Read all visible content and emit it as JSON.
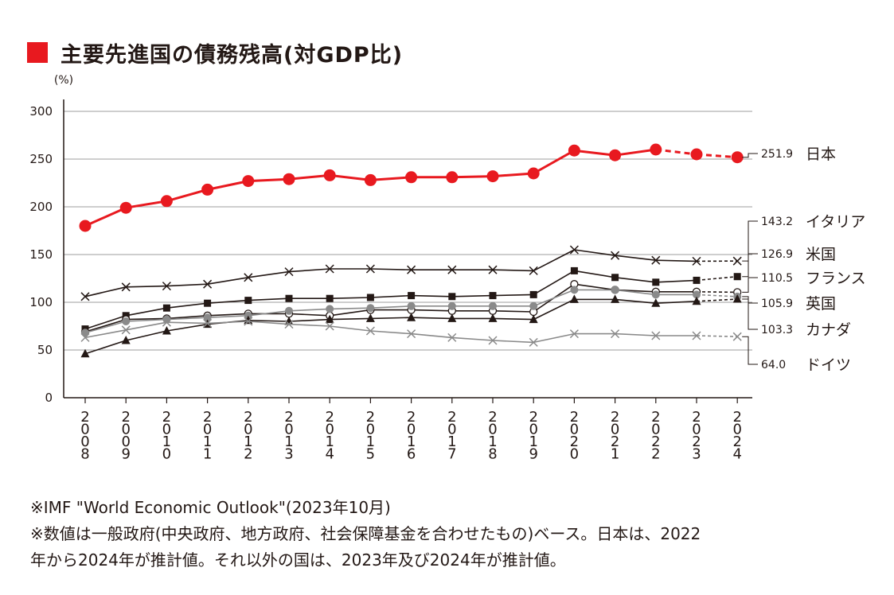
{
  "title": "主要先進国の債務残高(対GDP比)",
  "colors": {
    "accent": "#e8191f",
    "grid": "#9c9c9c",
    "axis": "#231815"
  },
  "chart_data": {
    "type": "line",
    "yunit": "(%)",
    "ylim": [
      0,
      300
    ],
    "yticks": [
      0,
      50,
      100,
      150,
      200,
      250,
      300
    ],
    "grid": true,
    "categories": [
      "2008",
      "2009",
      "2010",
      "2011",
      "2012",
      "2013",
      "2014",
      "2015",
      "2016",
      "2017",
      "2018",
      "2019",
      "2020",
      "2021",
      "2022",
      "2023",
      "2024"
    ],
    "series": [
      {
        "name": "日本",
        "label": "251.9",
        "color": "#e8191f",
        "marker": "circle-filled",
        "estimate_from": "2022",
        "values": [
          180,
          199,
          206,
          218,
          227,
          229,
          233,
          228,
          231,
          231,
          232,
          235,
          259,
          254,
          260,
          255,
          251.9
        ]
      },
      {
        "name": "イタリア",
        "label": "143.2",
        "color": "#231815",
        "marker": "x",
        "estimate_from": "2023",
        "values": [
          106,
          116,
          117,
          119,
          126,
          132,
          135,
          135,
          134,
          134,
          134,
          133,
          155,
          149,
          144,
          143,
          143.2
        ]
      },
      {
        "name": "米国",
        "label": "126.9",
        "color": "#231815",
        "marker": "square",
        "estimate_from": "2023",
        "values": [
          72,
          86,
          94,
          99,
          102,
          104,
          104,
          105,
          107,
          106,
          107,
          108,
          133,
          126,
          121,
          123,
          126.9
        ]
      },
      {
        "name": "フランス",
        "label": "110.5",
        "color": "#231815",
        "marker": "circle-open",
        "estimate_from": "2023",
        "values": [
          69,
          82,
          83,
          86,
          88,
          88,
          86,
          92,
          92,
          91,
          91,
          90,
          119,
          113,
          111,
          111,
          110.5
        ]
      },
      {
        "name": "英国",
        "label": "105.9",
        "color": "#8a8a8a",
        "marker": "circle-gray",
        "estimate_from": "2023",
        "values": [
          68,
          80,
          82,
          84,
          86,
          91,
          93,
          94,
          96,
          96,
          96,
          96,
          113,
          113,
          108,
          108,
          105.9
        ]
      },
      {
        "name": "カナダ",
        "label": "103.3",
        "color": "#231815",
        "marker": "triangle",
        "estimate_from": "2023",
        "values": [
          46,
          60,
          70,
          77,
          81,
          80,
          82,
          83,
          84,
          83,
          83,
          82,
          103,
          103,
          99,
          101,
          103.3
        ]
      },
      {
        "name": "ドイツ",
        "label": "64.0",
        "color": "#8a8a8a",
        "marker": "x",
        "estimate_from": "2023",
        "values": [
          63,
          71,
          79,
          78,
          80,
          77,
          75,
          70,
          67,
          63,
          60,
          58,
          67,
          67,
          65,
          65,
          64.0
        ]
      }
    ]
  },
  "notes": [
    "※IMF \"World Economic Outlook\"(2023年10月)",
    "※数値は一般政府(中央政府、地方政府、社会保障基金を合わせたもの)ベース。日本は、2022",
    "年から2024年が推計値。それ以外の国は、2023年及び2024年が推計値。"
  ]
}
